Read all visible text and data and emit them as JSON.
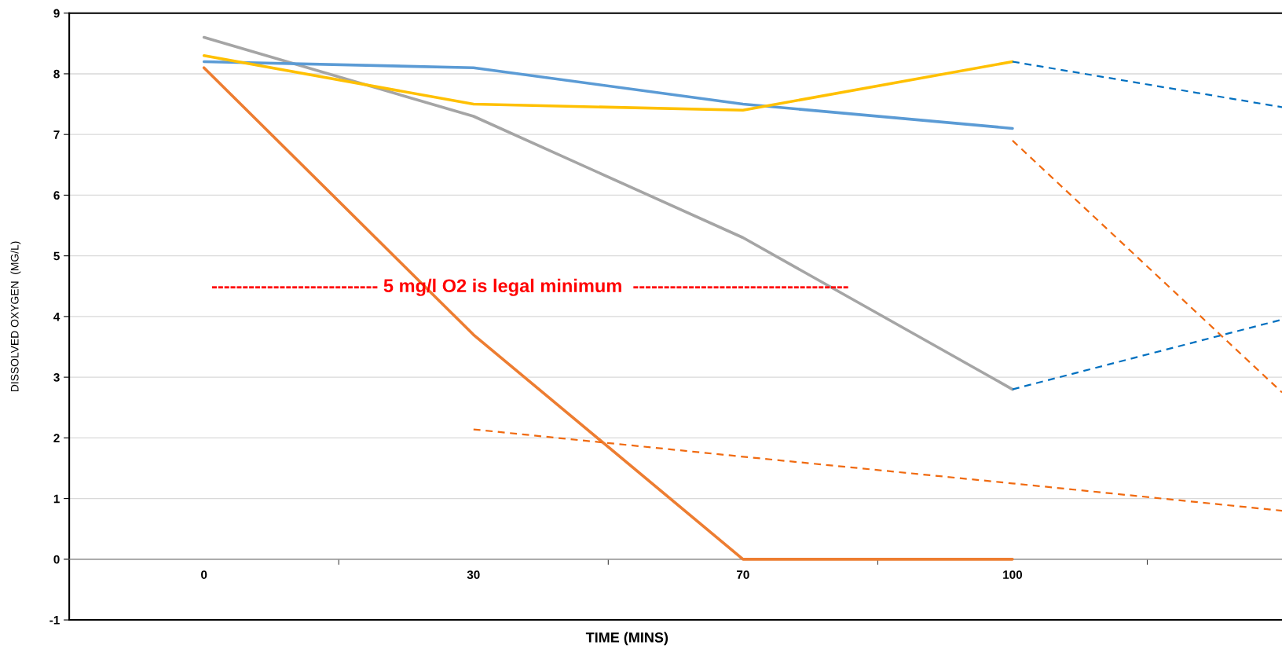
{
  "chart_data": {
    "type": "line",
    "xlabel": "TIME (MINS)",
    "ylabel": "DISSOLVED OXYGEN  (MG/L)",
    "categories": [
      "0",
      "30",
      "70",
      "100",
      null
    ],
    "ylim": [
      -1,
      9
    ],
    "yticks": [
      -1,
      0,
      1,
      2,
      3,
      4,
      5,
      6,
      7,
      8,
      9
    ],
    "grid": "y",
    "legend": false,
    "marker": "none",
    "series": [
      {
        "color": "#a5a5a5",
        "line_style": "solid",
        "values": [
          8.6,
          7.3,
          5.3,
          2.8,
          null
        ]
      },
      {
        "color": "#5b9bd5",
        "line_style": "solid",
        "values": [
          8.2,
          8.1,
          7.5,
          7.1,
          null
        ]
      },
      {
        "color": "#ffc000",
        "line_style": "solid",
        "values": [
          8.3,
          7.5,
          7.4,
          8.2,
          null
        ]
      },
      {
        "color": "#ed7d31",
        "line_style": "solid",
        "values": [
          8.1,
          3.7,
          0,
          0,
          null
        ]
      },
      {
        "color": "#0070c0",
        "line_style": "dashed",
        "values": [
          null,
          null,
          null,
          8.2,
          7.45
        ]
      },
      {
        "color": "#f06a10",
        "line_style": "dashed",
        "values": [
          null,
          null,
          null,
          6.9,
          2.75
        ]
      },
      {
        "color": "#0070c0",
        "line_style": "dashed",
        "values": [
          null,
          null,
          null,
          2.8,
          3.95
        ]
      },
      {
        "color": "#f06a10",
        "line_style": "dashed",
        "values": [
          null,
          2.14,
          1.69,
          1.25,
          0.8
        ]
      }
    ],
    "annotations": [
      "--------------------------- 5 mg/l O2 is legal minimum  -----------------------------------"
    ]
  }
}
